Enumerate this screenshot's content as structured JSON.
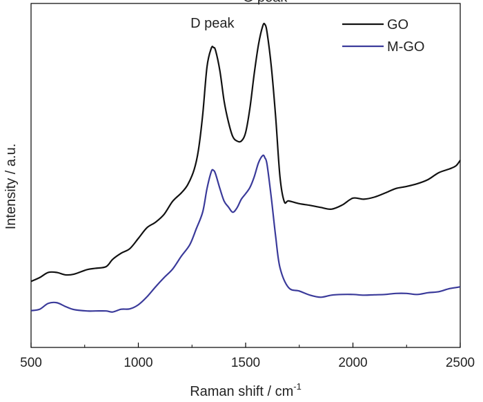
{
  "chart_data": {
    "type": "line",
    "title": "",
    "xlabel": "Raman shift / cm",
    "xlabel_superscript": "-1",
    "ylabel": "Intensity / a.u.",
    "xlim": [
      500,
      2500
    ],
    "ylim": [
      0,
      100
    ],
    "x_ticks": [
      500,
      1000,
      1500,
      2000,
      2500
    ],
    "y_ticks_shown": false,
    "grid": false,
    "legend_position": "top-right",
    "series": [
      {
        "name": "GO",
        "color": "#111111",
        "x": [
          500,
          540,
          580,
          620,
          660,
          700,
          760,
          800,
          850,
          880,
          920,
          960,
          1000,
          1040,
          1080,
          1120,
          1160,
          1200,
          1230,
          1260,
          1280,
          1300,
          1320,
          1340,
          1350,
          1360,
          1380,
          1400,
          1420,
          1440,
          1460,
          1480,
          1500,
          1520,
          1540,
          1560,
          1580,
          1590,
          1600,
          1620,
          1640,
          1660,
          1680,
          1700,
          1750,
          1800,
          1850,
          1900,
          1950,
          2000,
          2050,
          2100,
          2150,
          2200,
          2250,
          2300,
          2350,
          2400,
          2450,
          2480,
          2500
        ],
        "values": [
          19.2,
          20.3,
          21.8,
          21.8,
          21.1,
          21.3,
          22.6,
          23.0,
          23.5,
          25.6,
          27.4,
          28.7,
          31.7,
          34.8,
          36.4,
          38.7,
          42.5,
          44.9,
          47.3,
          51.7,
          57.4,
          67.7,
          81.6,
          87.0,
          87.2,
          86.3,
          80.4,
          71.5,
          65.5,
          61.3,
          60.0,
          60.0,
          62.5,
          69.6,
          79.6,
          88.1,
          93.5,
          93.9,
          91.5,
          81.4,
          66.9,
          49.6,
          42.4,
          42.6,
          41.8,
          41.3,
          40.7,
          40.2,
          41.4,
          43.4,
          43.1,
          43.7,
          44.9,
          46.2,
          46.8,
          47.6,
          48.8,
          50.8,
          51.9,
          52.8,
          54.4
        ]
      },
      {
        "name": "M-GO",
        "color": "#3a3a9a",
        "x": [
          500,
          540,
          580,
          620,
          660,
          700,
          760,
          800,
          850,
          880,
          920,
          960,
          1000,
          1040,
          1080,
          1120,
          1160,
          1200,
          1240,
          1270,
          1300,
          1320,
          1340,
          1350,
          1360,
          1380,
          1400,
          1420,
          1440,
          1460,
          1480,
          1500,
          1520,
          1540,
          1560,
          1580,
          1590,
          1600,
          1620,
          1640,
          1660,
          1700,
          1750,
          1800,
          1850,
          1900,
          1950,
          2000,
          2050,
          2100,
          2150,
          2200,
          2250,
          2300,
          2350,
          2400,
          2450,
          2500
        ],
        "values": [
          10.7,
          11.1,
          12.8,
          13.0,
          11.9,
          11.0,
          10.6,
          10.6,
          10.6,
          10.3,
          11.1,
          11.2,
          12.4,
          14.7,
          17.6,
          20.3,
          22.8,
          26.5,
          29.9,
          34.5,
          39.4,
          46.2,
          51.1,
          51.5,
          50.4,
          46.2,
          42.5,
          40.8,
          39.3,
          40.6,
          43.1,
          44.7,
          46.5,
          49.6,
          53.7,
          55.8,
          55.1,
          53.1,
          43.3,
          32.2,
          23.2,
          17.4,
          16.4,
          15.2,
          14.6,
          15.2,
          15.4,
          15.4,
          15.2,
          15.3,
          15.4,
          15.7,
          15.7,
          15.4,
          15.9,
          16.2,
          17.1,
          17.6
        ]
      }
    ],
    "annotations": [
      {
        "text": "D peak",
        "x": 1345,
        "y": 93
      },
      {
        "text": "G peak",
        "x": 1590,
        "y": 100.5
      }
    ]
  }
}
